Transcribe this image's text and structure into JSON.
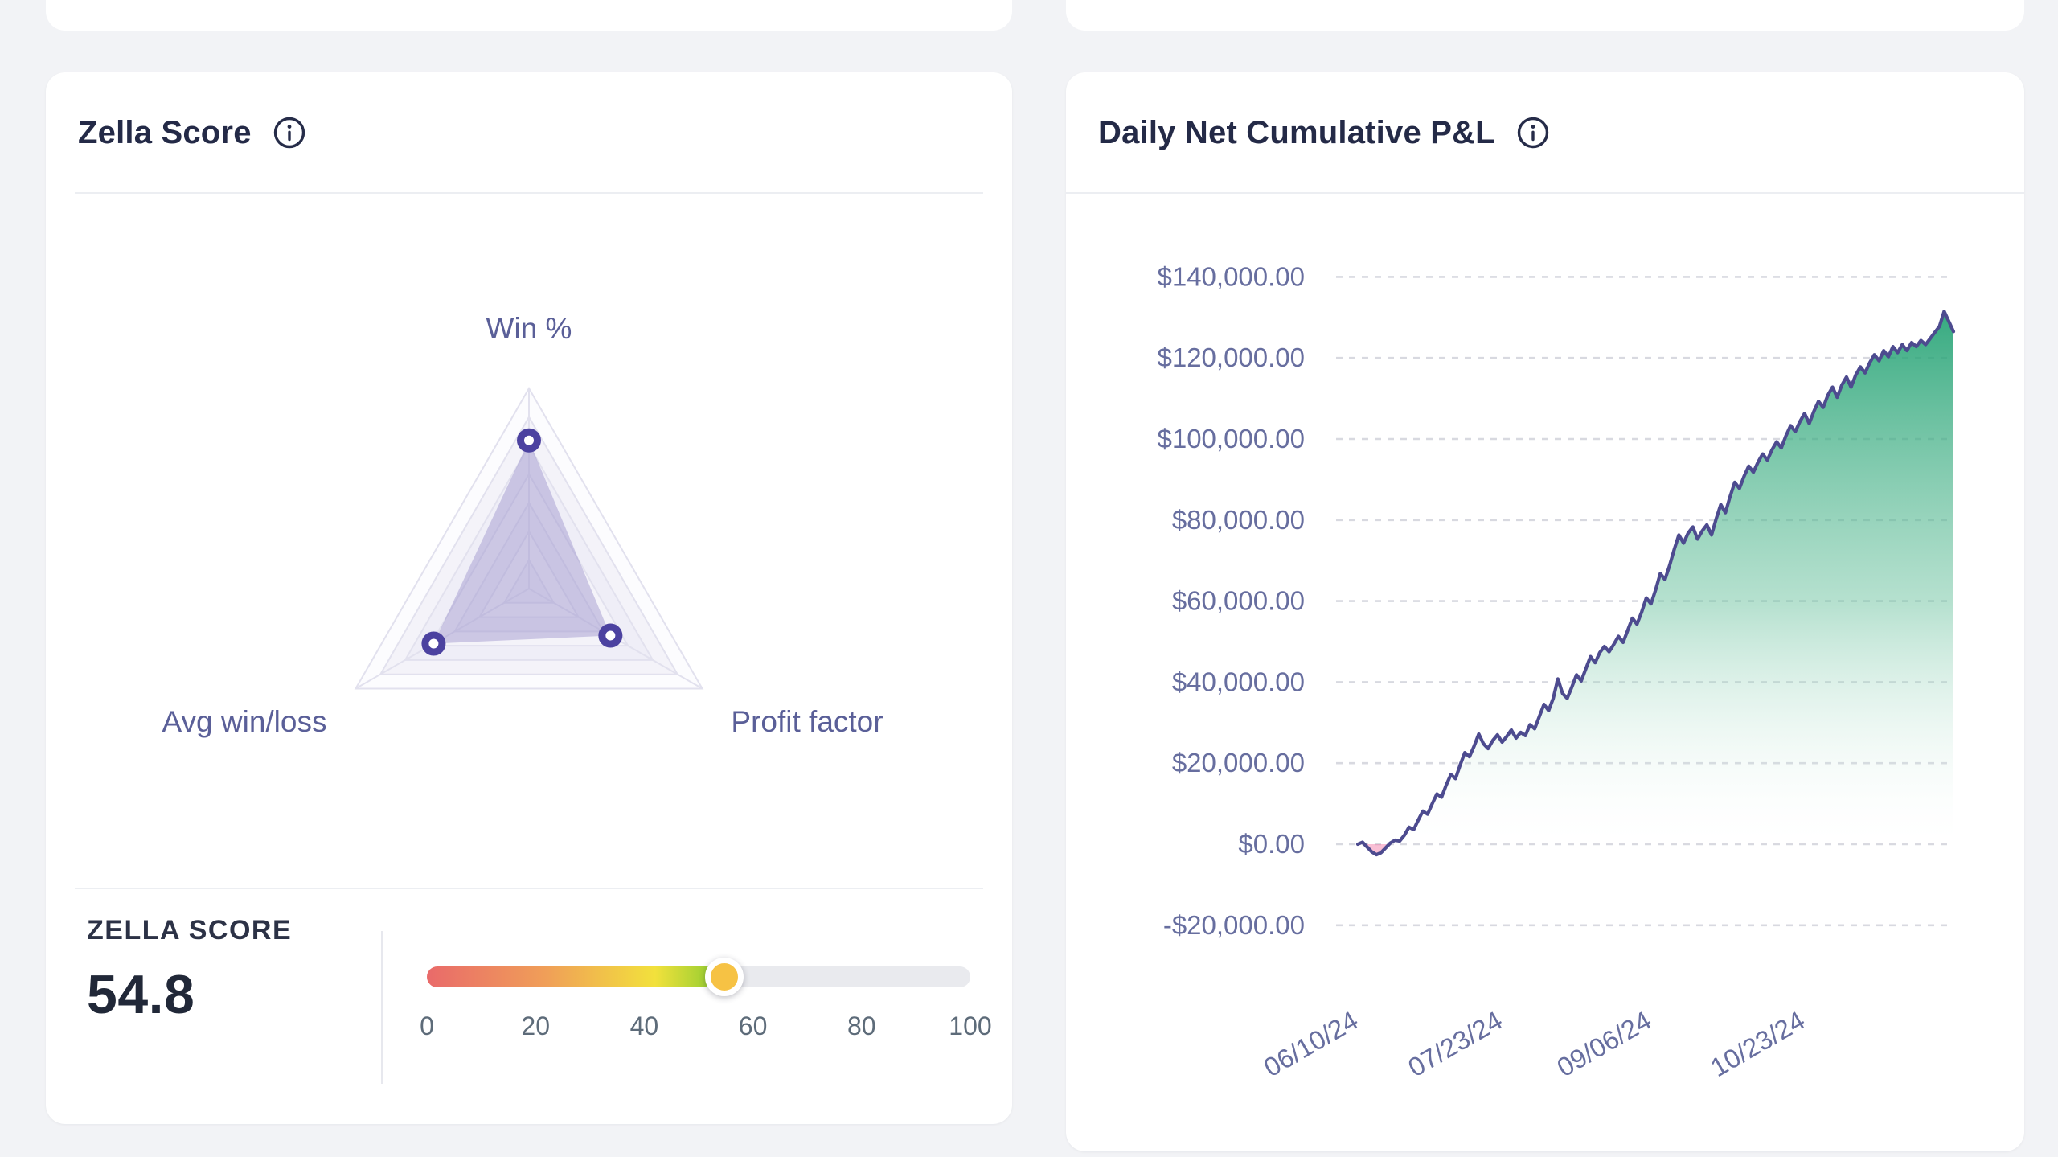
{
  "zella": {
    "title": "Zella Score",
    "score_label": "ZELLA SCORE",
    "score_value": "54.8",
    "slider": {
      "percent": 54.8,
      "gradient": [
        "#e96a6a",
        "#f09f58",
        "#f2e13c",
        "#84ca2f"
      ],
      "rest_color": "#e9eaee",
      "thumb_color": "#f6c244",
      "ticks": [
        "0",
        "20",
        "40",
        "60",
        "80",
        "100"
      ]
    },
    "radar_colors": {
      "label": "#5a5f98",
      "grid_stroke": "#e2e1ee",
      "band_a": "#fcfcfe",
      "band_b": "#efeef7",
      "band_c": "#f4f3f9",
      "polygon_fill": "rgba(148,138,200,0.42)",
      "marker_stroke": "#4c42a0",
      "marker_fill": "#ffffff"
    }
  },
  "pnl": {
    "title": "Daily Net Cumulative P&L",
    "colors": {
      "axis_text": "#676e9f",
      "grid_dash": "#d8d9e0",
      "line": "#4d4b8f",
      "area_top": "rgba(26,158,110,0.88)",
      "area_mid": "rgba(110,195,160,0.50)",
      "area_bottom": "rgba(255,255,255,0.04)",
      "negative_fill": "rgba(240,95,150,0.40)"
    }
  },
  "chart_data": [
    {
      "type": "radar",
      "title": "Zella Score",
      "axes": [
        "Win %",
        "Avg win/loss",
        "Profit factor"
      ],
      "values": [
        74,
        55,
        47
      ],
      "scale": [
        0,
        100
      ],
      "levels": 7,
      "legend": "none"
    },
    {
      "type": "area",
      "title": "Daily Net Cumulative P&L",
      "ylim": [
        -20000,
        140000
      ],
      "grid": "dashed-horizontal",
      "y_ticks": [
        {
          "value": 140000,
          "label": "$140,000.00"
        },
        {
          "value": 120000,
          "label": "$120,000.00"
        },
        {
          "value": 100000,
          "label": "$100,000.00"
        },
        {
          "value": 80000,
          "label": "$80,000.00"
        },
        {
          "value": 60000,
          "label": "$60,000.00"
        },
        {
          "value": 40000,
          "label": "$40,000.00"
        },
        {
          "value": 20000,
          "label": "$20,000.00"
        },
        {
          "value": 0,
          "label": "$0.00"
        },
        {
          "value": -20000,
          "label": "-$20,000.00"
        }
      ],
      "x_ticks": [
        {
          "index": 5,
          "label": "06/10/24"
        },
        {
          "index": 36,
          "label": "07/23/24"
        },
        {
          "index": 68,
          "label": "09/06/24"
        },
        {
          "index": 101,
          "label": "10/23/24"
        }
      ],
      "values": [
        0,
        500,
        -700,
        -1900,
        -2600,
        -2100,
        -900,
        300,
        1000,
        800,
        2200,
        4200,
        3600,
        6000,
        8200,
        7400,
        10000,
        12400,
        11600,
        14600,
        17200,
        16200,
        19600,
        22600,
        21600,
        24200,
        27200,
        24800,
        23600,
        25600,
        27000,
        25200,
        26600,
        28200,
        26200,
        27600,
        26800,
        29500,
        28500,
        31500,
        34500,
        33000,
        36000,
        40800,
        37200,
        36000,
        38800,
        41800,
        40300,
        43300,
        46300,
        44800,
        47300,
        48800,
        47500,
        49300,
        51300,
        49800,
        52800,
        55800,
        54300,
        57300,
        60800,
        59300,
        62800,
        66800,
        65300,
        68800,
        72800,
        76300,
        74300,
        76800,
        78300,
        75300,
        77300,
        78800,
        76300,
        80300,
        83800,
        81800,
        85800,
        89300,
        87800,
        90800,
        93300,
        91800,
        94300,
        96300,
        94800,
        97300,
        99300,
        97800,
        100800,
        103300,
        101800,
        104300,
        106300,
        103800,
        106800,
        109300,
        107800,
        110800,
        112800,
        110300,
        113300,
        115300,
        112800,
        115800,
        117800,
        116300,
        118800,
        120800,
        119300,
        121800,
        120300,
        122800,
        121300,
        123300,
        121800,
        123800,
        122800,
        124300,
        123300,
        124800,
        126300,
        127800,
        131500,
        129000,
        126500
      ]
    }
  ]
}
